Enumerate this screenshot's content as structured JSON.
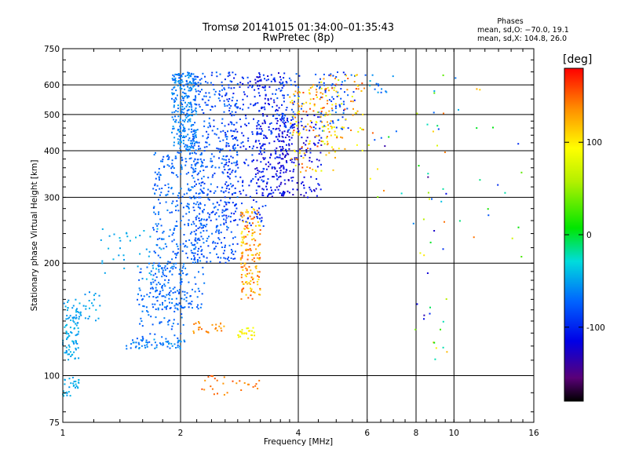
{
  "chart_data": {
    "type": "scatter",
    "title": "Tromsø 20141015 01:34:00–01:35:43",
    "subtitle": "RwPretec (8p)",
    "xlabel": "Frequency [MHz]",
    "ylabel": "Stationary phase Virtual Height [km]",
    "x_scale": "log",
    "y_scale": "log",
    "xlim": [
      1,
      16
    ],
    "ylim": [
      75,
      750
    ],
    "x_ticks": [
      1,
      2,
      4,
      6,
      8,
      10,
      16
    ],
    "x_tick_labels": [
      "1",
      "2",
      "4",
      "6",
      "8",
      "10",
      "16"
    ],
    "y_ticks": [
      75,
      100,
      200,
      300,
      400,
      500,
      600,
      750
    ],
    "y_tick_labels": [
      "75",
      "100",
      "200",
      "300",
      "400",
      "500",
      "600",
      "750"
    ],
    "grid": true,
    "stats": {
      "heading": "Phases",
      "line_o": "mean, sd,O: −70.0, 19.1",
      "line_x": "mean, sd,X: 104.8, 26.0"
    },
    "colorbar": {
      "label": "[deg]",
      "range": [
        -180,
        180
      ],
      "ticks": [
        100,
        0,
        -100
      ],
      "tick_labels": [
        "100",
        "0",
        "-100"
      ],
      "colormap": "rainbow"
    },
    "clusters": [
      {
        "f": [
          1.0,
          1.1
        ],
        "h": [
          110,
          160
        ],
        "phase": [
          -60,
          -40
        ],
        "n": 90
      },
      {
        "f": [
          1.0,
          1.1
        ],
        "h": [
          88,
          100
        ],
        "phase": [
          -55,
          -40
        ],
        "n": 30
      },
      {
        "f": [
          1.1,
          1.25
        ],
        "h": [
          140,
          170
        ],
        "phase": [
          -60,
          -40
        ],
        "n": 25
      },
      {
        "f": [
          1.25,
          1.8
        ],
        "h": [
          180,
          250
        ],
        "phase": [
          -55,
          -40
        ],
        "n": 40
      },
      {
        "f": [
          1.45,
          2.05
        ],
        "h": [
          118,
          125
        ],
        "phase": [
          -80,
          -50
        ],
        "n": 60
      },
      {
        "f": [
          1.55,
          2.05
        ],
        "h": [
          125,
          200
        ],
        "phase": [
          -80,
          -60
        ],
        "n": 120
      },
      {
        "f": [
          1.7,
          2.3
        ],
        "h": [
          150,
          400
        ],
        "phase": [
          -85,
          -60
        ],
        "n": 380
      },
      {
        "f": [
          1.9,
          2.2
        ],
        "h": [
          400,
          650
        ],
        "phase": [
          -75,
          -50
        ],
        "n": 280
      },
      {
        "f": [
          2.15,
          2.8
        ],
        "h": [
          200,
          650
        ],
        "phase": [
          -95,
          -65
        ],
        "n": 420
      },
      {
        "f": [
          2.15,
          2.6
        ],
        "h": [
          130,
          140
        ],
        "phase": [
          120,
          150
        ],
        "n": 25
      },
      {
        "f": [
          2.25,
          2.9
        ],
        "h": [
          88,
          100
        ],
        "phase": [
          130,
          160
        ],
        "n": 20
      },
      {
        "f": [
          2.6,
          3.3
        ],
        "h": [
          250,
          650
        ],
        "phase": [
          -115,
          -80
        ],
        "n": 220
      },
      {
        "f": [
          2.8,
          3.1
        ],
        "h": [
          125,
          135
        ],
        "phase": [
          80,
          110
        ],
        "n": 25
      },
      {
        "f": [
          2.85,
          3.2
        ],
        "h": [
          160,
          280
        ],
        "phase": [
          100,
          160
        ],
        "n": 160
      },
      {
        "f": [
          2.9,
          3.2
        ],
        "h": [
          92,
          98
        ],
        "phase": [
          130,
          150
        ],
        "n": 8
      },
      {
        "f": [
          3.1,
          3.7
        ],
        "h": [
          300,
          650
        ],
        "phase": [
          -130,
          -90
        ],
        "n": 200
      },
      {
        "f": [
          3.5,
          4.6
        ],
        "h": [
          300,
          500
        ],
        "phase": [
          -135,
          -100
        ],
        "n": 160
      },
      {
        "f": [
          3.4,
          4.1
        ],
        "h": [
          440,
          650
        ],
        "phase": [
          -100,
          -70
        ],
        "n": 70
      },
      {
        "f": [
          3.8,
          5.0
        ],
        "h": [
          350,
          600
        ],
        "phase": [
          80,
          160
        ],
        "n": 110
      },
      {
        "f": [
          4.4,
          5.6
        ],
        "h": [
          450,
          650
        ],
        "phase": [
          -110,
          -60
        ],
        "n": 70
      },
      {
        "f": [
          4.3,
          5.9
        ],
        "h": [
          400,
          640
        ],
        "phase": [
          60,
          160
        ],
        "n": 90
      },
      {
        "f": [
          5.9,
          7.0
        ],
        "h": [
          570,
          660
        ],
        "phase": [
          -80,
          -40
        ],
        "n": 14
      },
      {
        "f": [
          6.0,
          7.5
        ],
        "h": [
          300,
          460
        ],
        "phase": [
          -140,
          160
        ],
        "n": 12
      },
      {
        "f": [
          7.8,
          9.6
        ],
        "h": [
          110,
          640
        ],
        "phase": [
          -150,
          150
        ],
        "n": 45
      },
      {
        "f": [
          10.0,
          15.0
        ],
        "h": [
          160,
          640
        ],
        "phase": [
          -150,
          150
        ],
        "n": 18
      }
    ]
  }
}
